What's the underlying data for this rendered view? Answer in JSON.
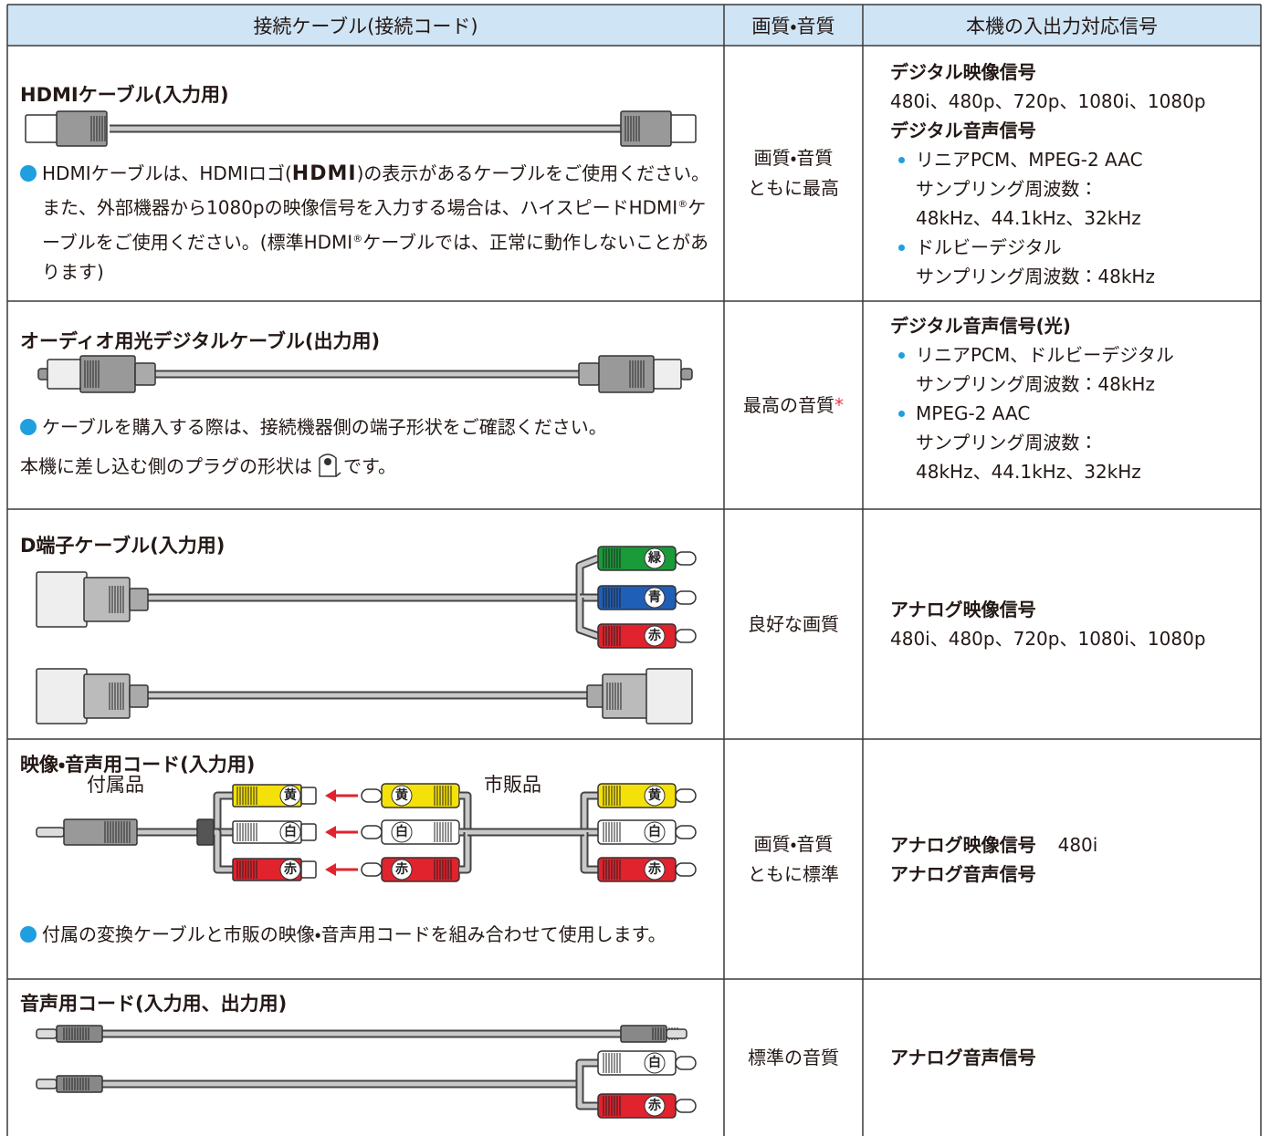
{
  "table": {
    "header": [
      "接続ケーブル(接続コード)",
      "画質・音質",
      "本機の入出力対応信号"
    ],
    "rows": [
      {
        "cable": {
          "title": "HDMIケーブル(入力用)",
          "notes": [
            [
              "HDMIケーブルは、HDMIロゴ(",
              "HDMI",
              ")の表示があるケーブルをご使用ください。また、外部機器から1080pの映像信号を入力する場合は、ハイスピードHDMI",
              "®",
              "ケーブルをご使用ください。(標準HDMI",
              "®",
              "ケーブルでは、正常に動作しないことがあります)"
            ]
          ]
        },
        "quality": [
          "画質・音質",
          "ともに最高"
        ],
        "signals": [
          {
            "heading": "デジタル映像信号"
          },
          {
            "text": "480i、480p、720p、1080i、1080p"
          },
          {
            "heading": "デジタル音声信号"
          },
          {
            "bullet": [
              "リニアPCM、MPEG-2 AAC",
              "サンプリング周波数：",
              "48kHz、44.1kHz、32kHz"
            ]
          },
          {
            "bullet": [
              "ドルビーデジタル",
              "サンプリング周波数：48kHz"
            ]
          }
        ]
      },
      {
        "cable": {
          "title": "オーディオ用光デジタルケーブル(出力用)",
          "notes": [
            [
              "ケーブルを購入する際は、接続機器側の端子形状をご確認ください。"
            ],
            [
              "本機に差し込む側のプラグの形状は",
              "です。"
            ]
          ]
        },
        "quality": [
          "最高の音質",
          "*"
        ],
        "signals": [
          {
            "heading": "デジタル音声信号(光)"
          },
          {
            "bullet": [
              "リニアPCM、ドルビーデジタル",
              "サンプリング周波数：48kHz"
            ]
          },
          {
            "bullet": [
              "MPEG-2 AAC",
              "サンプリング周波数：",
              "48kHz、44.1kHz、32kHz"
            ]
          }
        ]
      },
      {
        "cable": {
          "title": "D端子ケーブル(入力用)",
          "plug_labels": [
            "緑",
            "青",
            "赤"
          ]
        },
        "quality": [
          "良好な画質"
        ],
        "signals": [
          {
            "heading": "アナログ映像信号"
          },
          {
            "text": "480i、480p、720p、1080i、1080p"
          }
        ]
      },
      {
        "cable": {
          "title": "映像・音声用コード(入力用)",
          "included": "付属品",
          "sold": "市販品",
          "adapter_labels": [
            "黄",
            "白",
            "赤"
          ],
          "middle_labels": [
            "黄",
            "白",
            "赤"
          ],
          "plug_labels": [
            "黄",
            "白",
            "赤"
          ],
          "notes": [
            [
              "付属の変換ケーブルと市販の映像・音声用コードを組み合わせて使用します。"
            ]
          ]
        },
        "quality": [
          "画質・音質",
          "ともに標準"
        ],
        "signals": [
          {
            "heading": "アナログ映像信号",
            "text": "480i"
          },
          {
            "heading": "アナログ音声信号"
          }
        ]
      },
      {
        "cable": {
          "title": "音声用コード(入力用、出力用)",
          "plug_labels": [
            "白",
            "赤"
          ]
        },
        "quality": [
          "標準の音質"
        ],
        "signals": [
          {
            "heading": "アナログ音声信号"
          }
        ]
      }
    ]
  }
}
